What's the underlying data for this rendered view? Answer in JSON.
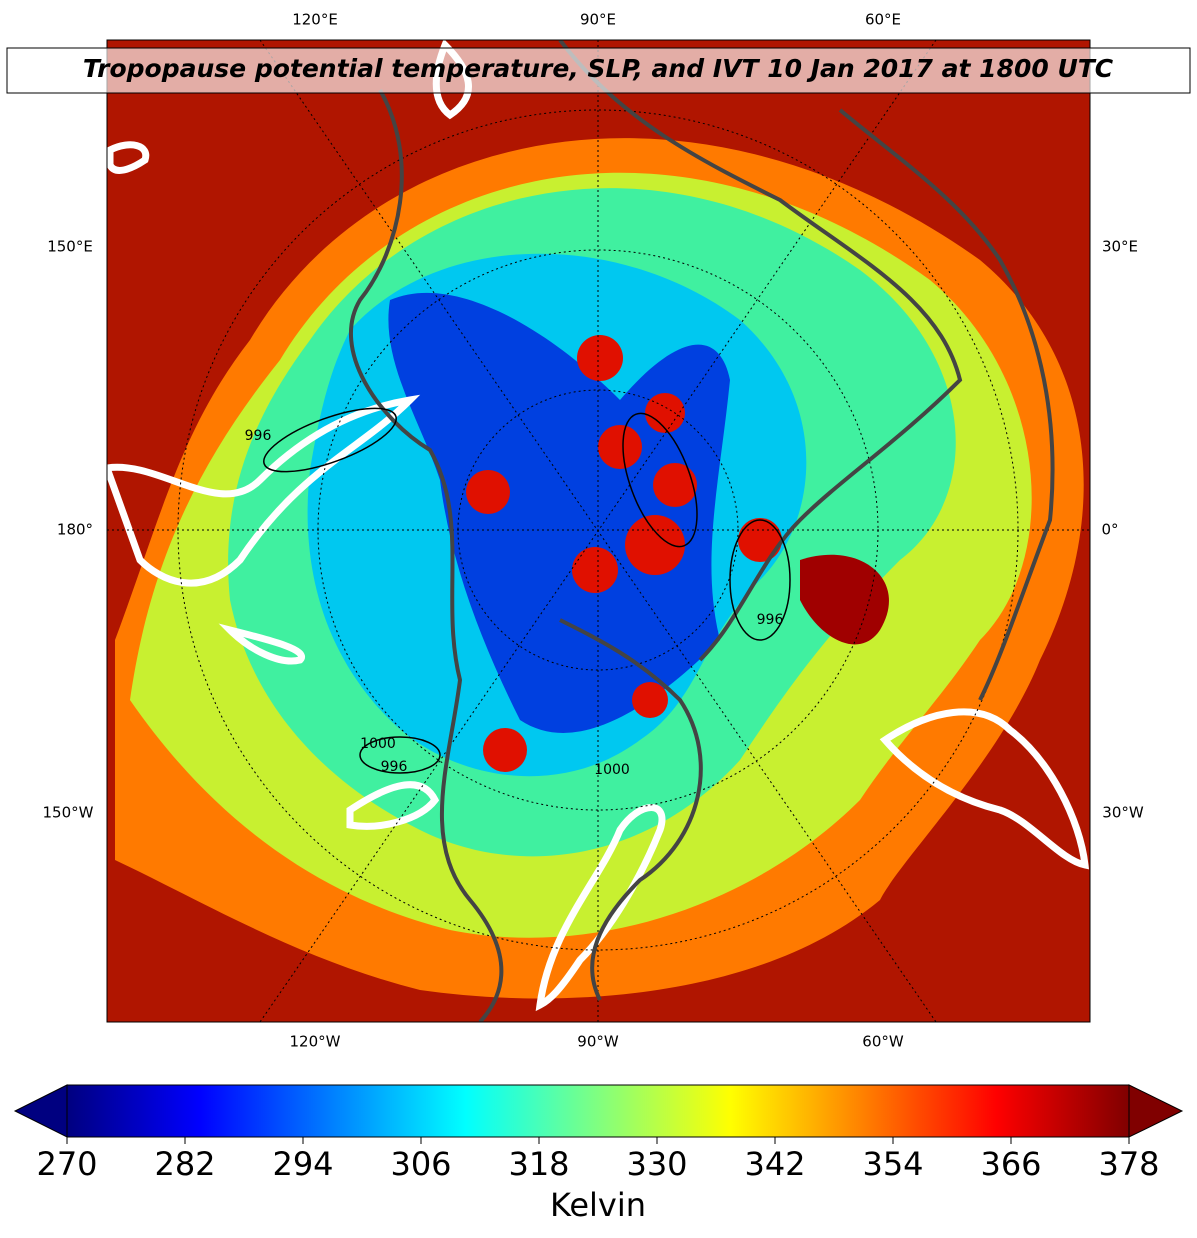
{
  "title": "Tropopause potential temperature, SLP, and IVT 10 Jan 2017 at 1800 UTC",
  "lon_labels": {
    "top": [
      "120°E",
      "90°E",
      "60°E"
    ],
    "left": [
      "150°E",
      "180°",
      "150°W"
    ],
    "right": [
      "30°E",
      "0°",
      "30°W"
    ],
    "bottom": [
      "120°W",
      "90°W",
      "60°W"
    ]
  },
  "contour_labels": [
    "1000",
    "996",
    "1000",
    "996",
    "996"
  ],
  "colorbar": {
    "label": "Kelvin",
    "colormap": "jet",
    "lim": [
      270,
      378
    ],
    "ticks": [
      270,
      282,
      294,
      306,
      318,
      330,
      342,
      354,
      366,
      378
    ]
  }
}
